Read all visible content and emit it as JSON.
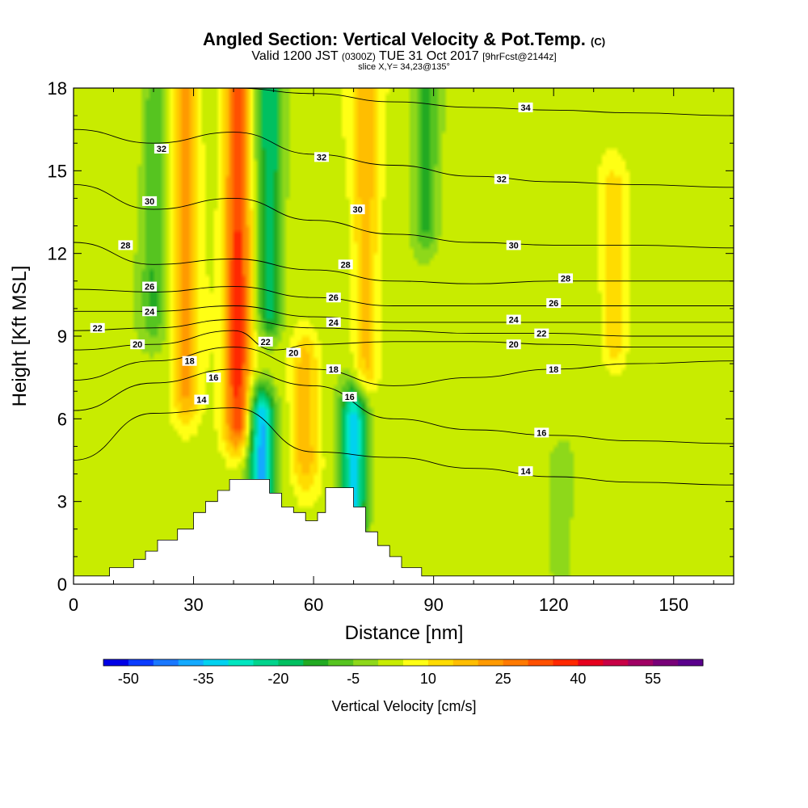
{
  "header": {
    "title": "Angled Section: Vertical Velocity & Pot.Temp.",
    "title_mark": "(C)",
    "valid_prefix": "Valid 1200 JST",
    "valid_utc": "(0300Z)",
    "valid_date": "TUE 31 Oct 2017",
    "valid_fcst": "[9hrFcst@2144z]",
    "slice": "slice X,Y= 34,23@135°"
  },
  "chart_data": {
    "type": "heatmap",
    "xlabel": "Distance [nm]",
    "ylabel": "Height [Kft MSL]",
    "xlim": [
      0,
      165
    ],
    "ylim": [
      0,
      18
    ],
    "xticks": [
      "0",
      "30",
      "60",
      "90",
      "120",
      "150"
    ],
    "yticks": [
      "0",
      "3",
      "6",
      "9",
      "12",
      "15",
      "18"
    ],
    "background_velocity": 3,
    "velocity_features": [
      {
        "x": 41,
        "y_from": 6,
        "y_to": 18,
        "value": 32
      },
      {
        "x": 49,
        "y_from": 10,
        "y_to": 18,
        "value": -22
      },
      {
        "x": 28,
        "y_from": 7,
        "y_to": 18,
        "value": 18
      },
      {
        "x": 20,
        "y_from": 10,
        "y_to": 18,
        "value": -12
      },
      {
        "x": 73,
        "y_from": 8,
        "y_to": 18,
        "value": 15
      },
      {
        "x": 88,
        "y_from": 13,
        "y_to": 18,
        "value": -14
      },
      {
        "x": 47,
        "y_from": 3.5,
        "y_to": 6,
        "value": -40
      },
      {
        "x": 70,
        "y_from": 2.5,
        "y_to": 6,
        "value": -35
      },
      {
        "x": 58,
        "y_from": 4.5,
        "y_to": 8,
        "value": 15
      },
      {
        "x": 135,
        "y_from": 9,
        "y_to": 14,
        "value": 12
      },
      {
        "x": 122,
        "y_from": 0.5,
        "y_to": 4,
        "value": -8
      }
    ],
    "terrain_kft": [
      {
        "x": 0,
        "h": 0.3
      },
      {
        "x": 9,
        "h": 0.6
      },
      {
        "x": 15,
        "h": 0.9
      },
      {
        "x": 18,
        "h": 1.2
      },
      {
        "x": 21,
        "h": 1.6
      },
      {
        "x": 26,
        "h": 2.0
      },
      {
        "x": 30,
        "h": 2.6
      },
      {
        "x": 33,
        "h": 3.0
      },
      {
        "x": 36,
        "h": 3.4
      },
      {
        "x": 39,
        "h": 3.8
      },
      {
        "x": 46,
        "h": 3.8
      },
      {
        "x": 49,
        "h": 3.3
      },
      {
        "x": 52,
        "h": 2.8
      },
      {
        "x": 55,
        "h": 2.6
      },
      {
        "x": 58,
        "h": 2.3
      },
      {
        "x": 61,
        "h": 2.6
      },
      {
        "x": 63,
        "h": 3.5
      },
      {
        "x": 67,
        "h": 3.5
      },
      {
        "x": 70,
        "h": 2.8
      },
      {
        "x": 73,
        "h": 1.9
      },
      {
        "x": 76,
        "h": 1.4
      },
      {
        "x": 79,
        "h": 1.0
      },
      {
        "x": 82,
        "h": 0.6
      },
      {
        "x": 87,
        "h": 0.3
      },
      {
        "x": 165,
        "h": 0.3
      }
    ],
    "contours": [
      {
        "label": "14",
        "points": [
          [
            0,
            4.5
          ],
          [
            20,
            6.2
          ],
          [
            40,
            6.4
          ],
          [
            60,
            4.8
          ],
          [
            80,
            4.6
          ],
          [
            100,
            4.2
          ],
          [
            120,
            3.9
          ],
          [
            140,
            3.7
          ],
          [
            165,
            3.6
          ]
        ]
      },
      {
        "label": "16",
        "points": [
          [
            0,
            6.3
          ],
          [
            20,
            7.3
          ],
          [
            40,
            7.8
          ],
          [
            60,
            7.2
          ],
          [
            80,
            6.0
          ],
          [
            100,
            5.6
          ],
          [
            120,
            5.4
          ],
          [
            140,
            5.2
          ],
          [
            165,
            5.1
          ]
        ]
      },
      {
        "label": "18",
        "points": [
          [
            0,
            7.4
          ],
          [
            20,
            8.1
          ],
          [
            40,
            8.6
          ],
          [
            60,
            7.8
          ],
          [
            80,
            7.2
          ],
          [
            100,
            7.5
          ],
          [
            120,
            7.8
          ],
          [
            140,
            8.0
          ],
          [
            165,
            8.1
          ]
        ]
      },
      {
        "label": "20",
        "points": [
          [
            0,
            8.5
          ],
          [
            20,
            8.7
          ],
          [
            40,
            9.2
          ],
          [
            50,
            8.5
          ],
          [
            60,
            8.7
          ],
          [
            80,
            8.8
          ],
          [
            100,
            8.8
          ],
          [
            120,
            8.7
          ],
          [
            140,
            8.6
          ],
          [
            165,
            8.6
          ]
        ]
      },
      {
        "label": "22",
        "points": [
          [
            0,
            9.2
          ],
          [
            20,
            9.3
          ],
          [
            40,
            9.6
          ],
          [
            60,
            9.3
          ],
          [
            80,
            9.2
          ],
          [
            100,
            9.1
          ],
          [
            120,
            9.1
          ],
          [
            140,
            9.0
          ],
          [
            165,
            9.0
          ]
        ]
      },
      {
        "label": "24",
        "points": [
          [
            0,
            9.9
          ],
          [
            20,
            9.9
          ],
          [
            40,
            10.1
          ],
          [
            60,
            9.7
          ],
          [
            80,
            9.5
          ],
          [
            100,
            9.5
          ],
          [
            120,
            9.5
          ],
          [
            140,
            9.5
          ],
          [
            165,
            9.5
          ]
        ]
      },
      {
        "label": "26",
        "points": [
          [
            0,
            10.7
          ],
          [
            20,
            10.6
          ],
          [
            40,
            10.8
          ],
          [
            60,
            10.4
          ],
          [
            80,
            10.1
          ],
          [
            100,
            10.1
          ],
          [
            120,
            10.1
          ],
          [
            140,
            10.1
          ],
          [
            165,
            10.1
          ]
        ]
      },
      {
        "label": "28",
        "points": [
          [
            0,
            12.4
          ],
          [
            20,
            11.6
          ],
          [
            40,
            11.8
          ],
          [
            60,
            11.4
          ],
          [
            80,
            11.0
          ],
          [
            100,
            10.9
          ],
          [
            120,
            11.0
          ],
          [
            140,
            11.0
          ],
          [
            165,
            11.0
          ]
        ]
      },
      {
        "label": "30",
        "points": [
          [
            0,
            14.5
          ],
          [
            20,
            13.6
          ],
          [
            40,
            14.0
          ],
          [
            60,
            13.2
          ],
          [
            80,
            12.7
          ],
          [
            100,
            12.4
          ],
          [
            120,
            12.3
          ],
          [
            140,
            12.3
          ],
          [
            165,
            12.2
          ]
        ]
      },
      {
        "label": "32",
        "points": [
          [
            0,
            16.5
          ],
          [
            20,
            16.0
          ],
          [
            40,
            16.4
          ],
          [
            60,
            15.6
          ],
          [
            80,
            15.2
          ],
          [
            100,
            14.8
          ],
          [
            120,
            14.6
          ],
          [
            140,
            14.5
          ],
          [
            165,
            14.4
          ]
        ]
      },
      {
        "label": "34",
        "points": [
          [
            0,
            18.0
          ],
          [
            40,
            18.0
          ],
          [
            60,
            17.8
          ],
          [
            80,
            17.5
          ],
          [
            100,
            17.3
          ],
          [
            120,
            17.2
          ],
          [
            140,
            17.1
          ],
          [
            165,
            17.0
          ]
        ]
      }
    ],
    "contour_labels": [
      {
        "text": "32",
        "x": 22,
        "y": 15.8
      },
      {
        "text": "30",
        "x": 19,
        "y": 13.9
      },
      {
        "text": "28",
        "x": 13,
        "y": 12.3
      },
      {
        "text": "26",
        "x": 19,
        "y": 10.8
      },
      {
        "text": "24",
        "x": 19,
        "y": 9.9
      },
      {
        "text": "22",
        "x": 6,
        "y": 9.3
      },
      {
        "text": "20",
        "x": 16,
        "y": 8.7
      },
      {
        "text": "18",
        "x": 29,
        "y": 8.1
      },
      {
        "text": "16",
        "x": 35,
        "y": 7.5
      },
      {
        "text": "14",
        "x": 32,
        "y": 6.7
      },
      {
        "text": "32",
        "x": 62,
        "y": 15.5
      },
      {
        "text": "30",
        "x": 71,
        "y": 13.6
      },
      {
        "text": "28",
        "x": 68,
        "y": 11.6
      },
      {
        "text": "26",
        "x": 65,
        "y": 10.4
      },
      {
        "text": "24",
        "x": 65,
        "y": 9.5
      },
      {
        "text": "22",
        "x": 48,
        "y": 8.8
      },
      {
        "text": "20",
        "x": 55,
        "y": 8.4
      },
      {
        "text": "18",
        "x": 65,
        "y": 7.8
      },
      {
        "text": "16",
        "x": 69,
        "y": 6.8
      },
      {
        "text": "34",
        "x": 113,
        "y": 17.3
      },
      {
        "text": "32",
        "x": 107,
        "y": 14.7
      },
      {
        "text": "30",
        "x": 110,
        "y": 12.3
      },
      {
        "text": "28",
        "x": 123,
        "y": 11.1
      },
      {
        "text": "26",
        "x": 120,
        "y": 10.2
      },
      {
        "text": "24",
        "x": 110,
        "y": 9.6
      },
      {
        "text": "22",
        "x": 117,
        "y": 9.1
      },
      {
        "text": "20",
        "x": 110,
        "y": 8.7
      },
      {
        "text": "18",
        "x": 120,
        "y": 7.8
      },
      {
        "text": "16",
        "x": 117,
        "y": 5.5
      },
      {
        "text": "14",
        "x": 113,
        "y": 4.1
      }
    ],
    "colorbar": {
      "label": "Vertical Velocity [cm/s]",
      "colors": [
        "#0000e6",
        "#0a3cff",
        "#1a78ff",
        "#14aaff",
        "#00d2f0",
        "#00e6c0",
        "#00d48c",
        "#00c060",
        "#22aa22",
        "#56c420",
        "#8ed81a",
        "#c8ec00",
        "#ffff14",
        "#ffdc00",
        "#ffbe00",
        "#ff9a00",
        "#ff7a00",
        "#ff5000",
        "#ff2800",
        "#e6001e",
        "#c80046",
        "#a00064",
        "#780078",
        "#5a008c"
      ],
      "tick_labels": [
        "-50",
        "-35",
        "-20",
        "-5",
        "10",
        "25",
        "40",
        "55"
      ]
    }
  }
}
